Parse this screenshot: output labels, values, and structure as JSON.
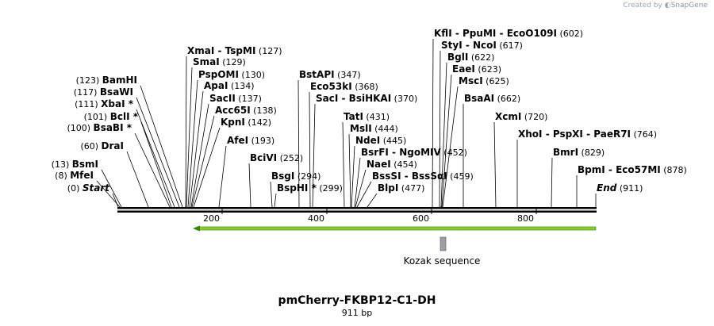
{
  "credit": {
    "prefix": "Created by",
    "brand": "SnapGene"
  },
  "plasmid": {
    "name": "pmCherry-FKBP12-C1-DH",
    "size_label": "911 bp",
    "length": 911
  },
  "ticks": [
    "200",
    "400",
    "600",
    "800"
  ],
  "feature": {
    "label": "Kozak sequence"
  },
  "colors": {
    "arrow": "#8ccc2c",
    "arrow_dark": "#2d8a00",
    "backbone": "#000000",
    "feature_box": "#9aa0a6"
  },
  "sites": [
    {
      "names": [
        "Start"
      ],
      "italic": true,
      "pos": "(0)",
      "pos_left": true
    },
    {
      "names": [
        "MfeI"
      ],
      "pos": "(8)",
      "pos_left": true
    },
    {
      "names": [
        "BsmI"
      ],
      "pos": "(13)",
      "pos_left": true
    },
    {
      "names": [
        "DraI"
      ],
      "pos": "(60)",
      "pos_left": true
    },
    {
      "names": [
        "BsaBI *"
      ],
      "pos": "(100)",
      "pos_left": true
    },
    {
      "names": [
        "BclI *"
      ],
      "pos": "(101)",
      "pos_left": true
    },
    {
      "names": [
        "XbaI *"
      ],
      "pos": "(111)",
      "pos_left": true
    },
    {
      "names": [
        "BsaWI"
      ],
      "pos": "(117)",
      "pos_left": true
    },
    {
      "names": [
        "BamHI"
      ],
      "pos": "(123)",
      "pos_left": true
    },
    {
      "names": [
        "XmaI",
        "TspMI"
      ],
      "pos": "(127)"
    },
    {
      "names": [
        "SmaI"
      ],
      "pos": "(129)"
    },
    {
      "names": [
        "PspOMI"
      ],
      "pos": "(130)"
    },
    {
      "names": [
        "ApaI"
      ],
      "pos": "(134)"
    },
    {
      "names": [
        "SacII"
      ],
      "pos": "(137)"
    },
    {
      "names": [
        "Acc65I"
      ],
      "pos": "(138)"
    },
    {
      "names": [
        "KpnI"
      ],
      "pos": "(142)"
    },
    {
      "names": [
        "AfeI"
      ],
      "pos": "(193)"
    },
    {
      "names": [
        "BciVI"
      ],
      "pos": "(252)"
    },
    {
      "names": [
        "BsgI"
      ],
      "pos": "(294)"
    },
    {
      "names": [
        "BspHI *"
      ],
      "pos": "(299)"
    },
    {
      "names": [
        "BstAPI"
      ],
      "pos": "(347)"
    },
    {
      "names": [
        "Eco53kI"
      ],
      "pos": "(368)"
    },
    {
      "names": [
        "SacI",
        "BsiHKAI"
      ],
      "pos": "(370)"
    },
    {
      "names": [
        "TatI"
      ],
      "pos": "(431)"
    },
    {
      "names": [
        "MslI"
      ],
      "pos": "(444)"
    },
    {
      "names": [
        "NdeI"
      ],
      "pos": "(445)"
    },
    {
      "names": [
        "BsrFI",
        "NgoMIV"
      ],
      "pos": "(452)"
    },
    {
      "names": [
        "NaeI"
      ],
      "pos": "(454)"
    },
    {
      "names": [
        "BssSI",
        "BssSαI"
      ],
      "pos": "(459)"
    },
    {
      "names": [
        "BlpI"
      ],
      "pos": "(477)"
    },
    {
      "names": [
        "KflI",
        "PpuMI",
        "EcoO109I"
      ],
      "pos": "(602)"
    },
    {
      "names": [
        "StyI",
        "NcoI"
      ],
      "pos": "(617)"
    },
    {
      "names": [
        "BglI"
      ],
      "pos": "(622)"
    },
    {
      "names": [
        "EaeI"
      ],
      "pos": "(623)"
    },
    {
      "names": [
        "MscI"
      ],
      "pos": "(625)"
    },
    {
      "names": [
        "BsaAI"
      ],
      "pos": "(662)"
    },
    {
      "names": [
        "XcmI"
      ],
      "pos": "(720)"
    },
    {
      "names": [
        "XhoI",
        "PspXI",
        "PaeR7I"
      ],
      "pos": "(764)"
    },
    {
      "names": [
        "BmrI"
      ],
      "pos": "(829)"
    },
    {
      "names": [
        "BpmI",
        "Eco57MI"
      ],
      "pos": "(878)"
    },
    {
      "names": [
        "End"
      ],
      "italic": true,
      "pos": "(911)"
    }
  ]
}
